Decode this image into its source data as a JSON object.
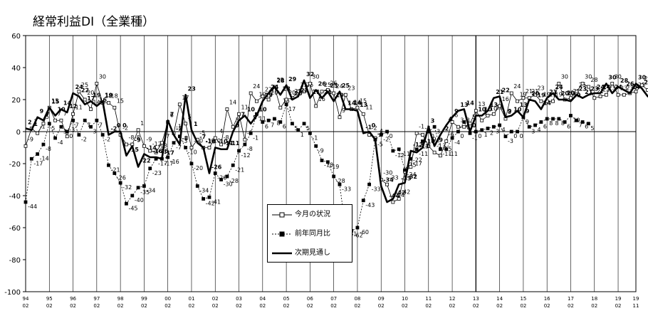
{
  "chart_data": {
    "type": "line",
    "title": "経常利益DI（全業種）",
    "ylim": [
      -100,
      60
    ],
    "ytick_step": 20,
    "grid": "vertical-year-lines",
    "legend_position": "center",
    "x_start_year": 1994,
    "x_start_month": 2,
    "x_step_months": 3,
    "x_tick_years": [
      "94",
      "95",
      "96",
      "97",
      "98",
      "99",
      "00",
      "01",
      "02",
      "03",
      "04",
      "05",
      "06",
      "07",
      "08",
      "09",
      "10",
      "11",
      "12",
      "13",
      "14",
      "15",
      "16",
      "17",
      "18",
      "19",
      "19"
    ],
    "x_tick_months": [
      "02",
      "02",
      "02",
      "02",
      "02",
      "02",
      "02",
      "02",
      "02",
      "02",
      "02",
      "02",
      "02",
      "02",
      "02",
      "02",
      "02",
      "02",
      "02",
      "02",
      "02",
      "02",
      "02",
      "02",
      "02",
      "02",
      "11"
    ],
    "series": [
      {
        "name": "今月の状況",
        "color": "#000000",
        "marker": "open-square",
        "line": "thin",
        "values": [
          -9,
          2,
          -1,
          5,
          15,
          7,
          7,
          -3,
          11,
          25,
          20,
          14,
          30,
          18,
          18,
          15,
          -2,
          -8,
          -8,
          1,
          -9,
          -12,
          -13,
          -7,
          6,
          -1,
          17,
          5,
          -10,
          -5,
          -10,
          -10,
          -4,
          -8,
          14,
          3,
          11,
          -5,
          24,
          19,
          22,
          20,
          28,
          15,
          20,
          21,
          25,
          25,
          30,
          16,
          25,
          26,
          24,
          9,
          23,
          14,
          15,
          11,
          -2,
          -4,
          -30,
          -33,
          -44,
          -42,
          -25,
          -22,
          -1,
          -2,
          -9,
          -13,
          -15,
          -6,
          6,
          3,
          3,
          5,
          13,
          7,
          10,
          11,
          16,
          8,
          24,
          19,
          21,
          21,
          23,
          19,
          19,
          19,
          30,
          20,
          21,
          25,
          30,
          28,
          21,
          22,
          23,
          30,
          23,
          23,
          24,
          25,
          29,
          26,
          22,
          22,
          24
        ]
      },
      {
        "name": "前年同月比",
        "color": "#000000",
        "marker": "filled-square",
        "line": "dotted",
        "values": [
          -44,
          -17,
          -14,
          -8,
          5,
          -4,
          3,
          0,
          7,
          -2,
          7,
          3,
          7,
          -2,
          -21,
          -26,
          -32,
          -45,
          -40,
          -35,
          -34,
          -23,
          -17,
          -17,
          -16,
          -7,
          -3,
          -10,
          -20,
          -34,
          -42,
          -41,
          -26,
          -30,
          -28,
          -21,
          -12,
          -8,
          -1,
          11,
          6,
          7,
          8,
          6,
          17,
          5,
          1,
          5,
          -1,
          -9,
          -18,
          -19,
          -28,
          -33,
          -61,
          -62,
          -60,
          -43,
          -33,
          -5,
          -2,
          0,
          -12,
          -11,
          -24,
          -17,
          -11,
          -6,
          0,
          3,
          -11,
          -11,
          -4,
          0,
          6,
          -1,
          0,
          1,
          2,
          3,
          4,
          -3,
          0,
          0,
          9,
          3,
          4,
          6,
          8,
          8,
          8,
          6,
          10,
          7,
          6,
          5
        ]
      },
      {
        "name": "次期見通し",
        "color": "#000000",
        "marker": "none",
        "line": "bold",
        "values": [
          2,
          1,
          9,
          7,
          15,
          10,
          14,
          12,
          24,
          22,
          17,
          19,
          16,
          19,
          -2,
          0,
          0,
          -15,
          -9,
          -22,
          -14,
          -16,
          -16,
          -17,
          7,
          -2,
          -8,
          23,
          1,
          -7,
          -10,
          -26,
          -10,
          -11,
          -11,
          0,
          7,
          10,
          5,
          10,
          19,
          24,
          28,
          23,
          29,
          20,
          22,
          32,
          21,
          26,
          21,
          25,
          19,
          25,
          14,
          14,
          13,
          -1,
          0,
          -5,
          -34,
          -44,
          -42,
          -33,
          -32,
          -12,
          -13,
          -10,
          3,
          -9,
          -2,
          4,
          9,
          13,
          14,
          0,
          10,
          10,
          13,
          21,
          22,
          9,
          10,
          13,
          9,
          20,
          19,
          14,
          21,
          24,
          20,
          20,
          19,
          23,
          21,
          23,
          24,
          24,
          30,
          24,
          28,
          26,
          24,
          30,
          27,
          22,
          25,
          24
        ]
      }
    ]
  }
}
